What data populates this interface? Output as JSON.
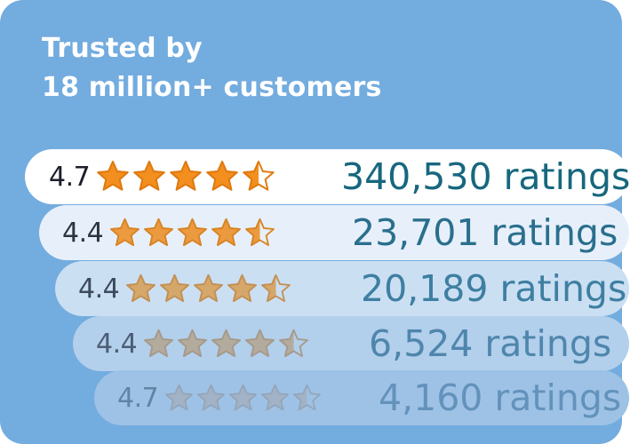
{
  "header": {
    "line1": "Trusted by",
    "line2": "18 million+ customers"
  },
  "colors": {
    "card": "#73acdf",
    "star_full": "#f28f1f",
    "title": "#ffffff"
  },
  "rows": [
    {
      "rating": "4.7",
      "stars": 4.5,
      "count": "340,530 ratings"
    },
    {
      "rating": "4.4",
      "stars": 4.5,
      "count": "23,701 ratings"
    },
    {
      "rating": "4.4",
      "stars": 4.5,
      "count": "20,189 ratings"
    },
    {
      "rating": "4.4",
      "stars": 4.5,
      "count": "6,524 ratings"
    },
    {
      "rating": "4.7",
      "stars": 4.5,
      "count": "4,160 ratings"
    }
  ]
}
